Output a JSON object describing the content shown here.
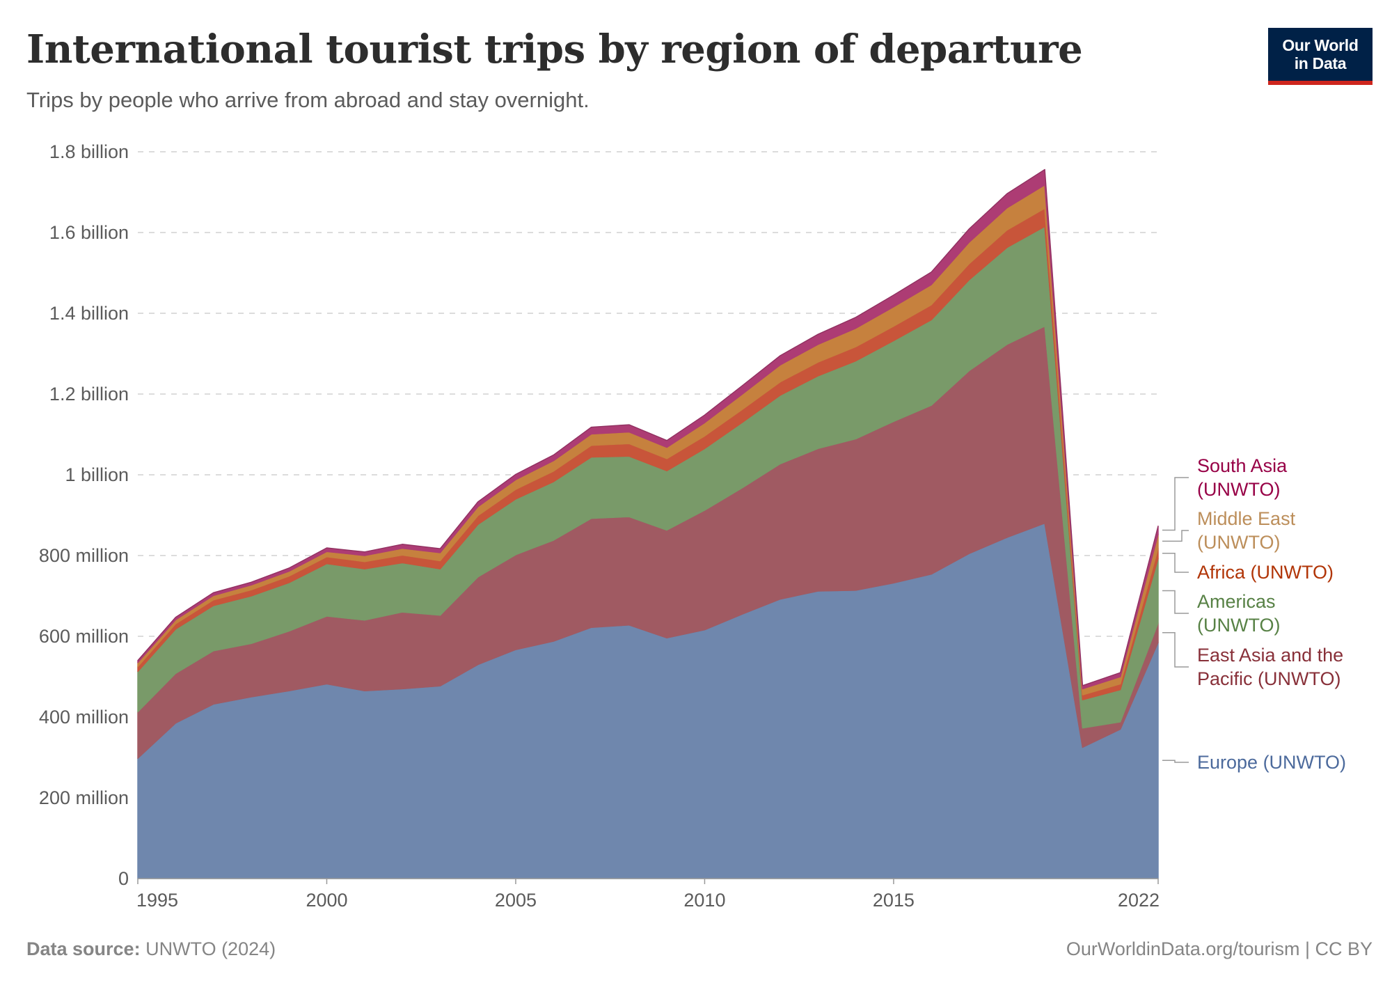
{
  "header": {
    "title": "International tourist trips by region of departure",
    "subtitle": "Trips by people who arrive from abroad and stay overnight."
  },
  "logo": {
    "line1": "Our World",
    "line2": "in Data"
  },
  "footer": {
    "source_label": "Data source:",
    "source_value": "UNWTO (2024)",
    "credit": "OurWorldinData.org/tourism | CC BY"
  },
  "chart_data": {
    "type": "area",
    "stacked": true,
    "title": "International tourist trips by region of departure",
    "subtitle": "Trips by people who arrive from abroad and stay overnight.",
    "xlabel": "",
    "ylabel": "",
    "ylim": [
      0,
      1800000000
    ],
    "xlim": [
      1995,
      2022
    ],
    "grid": true,
    "legend": "right, inline labels",
    "x_tick_labels": [
      "1995",
      "2000",
      "2005",
      "2010",
      "2015",
      "2022"
    ],
    "x_ticks": [
      1995,
      2000,
      2005,
      2010,
      2015,
      2022
    ],
    "y_tick_labels": [
      "0",
      "200 million",
      "400 million",
      "600 million",
      "800 million",
      "1 billion",
      "1.2 billion",
      "1.4 billion",
      "1.6 billion",
      "1.8 billion"
    ],
    "y_ticks": [
      0,
      200000000,
      400000000,
      600000000,
      800000000,
      1000000000,
      1200000000,
      1400000000,
      1600000000,
      1800000000
    ],
    "x": [
      1995,
      1996,
      1997,
      1998,
      1999,
      2000,
      2001,
      2002,
      2003,
      2004,
      2005,
      2006,
      2007,
      2008,
      2009,
      2010,
      2011,
      2012,
      2013,
      2014,
      2015,
      2016,
      2017,
      2018,
      2019,
      2020,
      2021,
      2022
    ],
    "series": [
      {
        "name": "Europe (UNWTO)",
        "color": "#6f87ad",
        "label_color": "#4c6a9c",
        "values": [
          298000000.0,
          385000000.0,
          432000000.0,
          450000000.0,
          465000000.0,
          482000000.0,
          465000000.0,
          470000000.0,
          477000000.0,
          530000000.0,
          567000000.0,
          588000000.0,
          622000000.0,
          628000000.0,
          596000000.0,
          616000000.0,
          655000000.0,
          692000000.0,
          712000000.0,
          714000000.0,
          732000000.0,
          754000000.0,
          805000000.0,
          845000000.0,
          880000000.0,
          325000000.0,
          370000000.0,
          585000000.0
        ]
      },
      {
        "name": "East Asia and the Pacific (UNWTO)",
        "color": "#a05a62",
        "label_color": "#883039",
        "values": [
          115000000.0,
          123000000.0,
          132000000.0,
          132000000.0,
          148000000.0,
          168000000.0,
          175000000.0,
          190000000.0,
          175000000.0,
          217000000.0,
          235000000.0,
          250000000.0,
          270000000.0,
          268000000.0,
          267000000.0,
          296000000.0,
          313000000.0,
          335000000.0,
          353000000.0,
          375000000.0,
          400000000.0,
          418000000.0,
          453000000.0,
          478000000.0,
          488000000.0,
          48000000.0,
          18000000.0,
          48000000.0
        ]
      },
      {
        "name": "Americas (UNWTO)",
        "color": "#799a69",
        "label_color": "#578145",
        "values": [
          100000000.0,
          110000000.0,
          112000000.0,
          118000000.0,
          120000000.0,
          130000000.0,
          127000000.0,
          122000000.0,
          115000000.0,
          130000000.0,
          138000000.0,
          145000000.0,
          152000000.0,
          150000000.0,
          147000000.0,
          153000000.0,
          162000000.0,
          170000000.0,
          180000000.0,
          193000000.0,
          200000000.0,
          212000000.0,
          225000000.0,
          240000000.0,
          247000000.0,
          70000000.0,
          80000000.0,
          160000000.0
        ]
      },
      {
        "name": "Africa (UNWTO)",
        "color": "#c8553a",
        "label_color": "#b13507",
        "values": [
          12000000.0,
          13000000.0,
          14000000.0,
          15000000.0,
          16000000.0,
          17000000.0,
          18000000.0,
          19000000.0,
          20000000.0,
          22000000.0,
          24000000.0,
          26000000.0,
          29000000.0,
          31000000.0,
          30000000.0,
          31000000.0,
          32000000.0,
          33000000.0,
          34000000.0,
          35000000.0,
          36000000.0,
          37000000.0,
          40000000.0,
          43000000.0,
          45000000.0,
          12000000.0,
          14000000.0,
          25000000.0
        ]
      },
      {
        "name": "Middle East (UNWTO)",
        "color": "#c6813e",
        "label_color": "#bc8e5a",
        "values": [
          10000000.0,
          10000000.0,
          11000000.0,
          12000000.0,
          12000000.0,
          13000000.0,
          15000000.0,
          17000000.0,
          20000000.0,
          22000000.0,
          24000000.0,
          26000000.0,
          28000000.0,
          29000000.0,
          28000000.0,
          33000000.0,
          38000000.0,
          42000000.0,
          44000000.0,
          46000000.0,
          48000000.0,
          50000000.0,
          53000000.0,
          55000000.0,
          58000000.0,
          15000000.0,
          18000000.0,
          35000000.0
        ]
      },
      {
        "name": "South Asia (UNWTO)",
        "color": "#ad3c74",
        "label_color": "#970046",
        "values": [
          5000000.0,
          6000000.0,
          7000000.0,
          7000000.0,
          8000000.0,
          9000000.0,
          9000000.0,
          10000000.0,
          10000000.0,
          12000000.0,
          13000000.0,
          14000000.0,
          17000000.0,
          18000000.0,
          17000000.0,
          19000000.0,
          21000000.0,
          23000000.0,
          25000000.0,
          27000000.0,
          29000000.0,
          31000000.0,
          33000000.0,
          35000000.0,
          38000000.0,
          8000000.0,
          10000000.0,
          20000000.0
        ]
      }
    ],
    "legend_labels": [
      {
        "series": "South Asia (UNWTO)",
        "lines": [
          "South Asia",
          "(UNWTO)"
        ]
      },
      {
        "series": "Middle East (UNWTO)",
        "lines": [
          "Middle East",
          "(UNWTO)"
        ]
      },
      {
        "series": "Africa (UNWTO)",
        "lines": [
          "Africa (UNWTO)"
        ]
      },
      {
        "series": "Americas (UNWTO)",
        "lines": [
          "Americas",
          "(UNWTO)"
        ]
      },
      {
        "series": "East Asia and the Pacific (UNWTO)",
        "lines": [
          "East Asia and the",
          "Pacific (UNWTO)"
        ]
      },
      {
        "series": "Europe (UNWTO)",
        "lines": [
          "Europe (UNWTO)"
        ]
      }
    ]
  }
}
